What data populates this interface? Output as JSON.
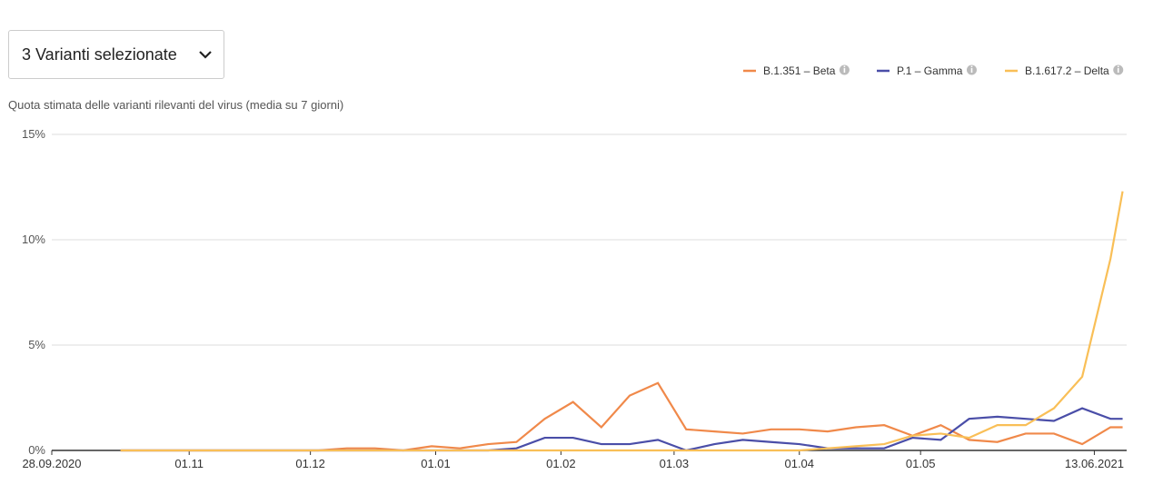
{
  "dropdown": {
    "label": "3 Varianti selezionate"
  },
  "chart_data": {
    "type": "line",
    "subtitle": "Quota stimata delle varianti rilevanti del virus (media su 7 giorni)",
    "x": [
      "2020-10-15",
      "2020-10-22",
      "2020-10-29",
      "2020-11-05",
      "2020-11-12",
      "2020-11-19",
      "2020-11-26",
      "2020-12-03",
      "2020-12-10",
      "2020-12-17",
      "2020-12-24",
      "2020-12-31",
      "2021-01-07",
      "2021-01-14",
      "2021-01-21",
      "2021-01-28",
      "2021-02-04",
      "2021-02-11",
      "2021-02-18",
      "2021-02-25",
      "2021-03-04",
      "2021-03-11",
      "2021-03-18",
      "2021-03-25",
      "2021-04-01",
      "2021-04-08",
      "2021-04-15",
      "2021-04-22",
      "2021-04-29",
      "2021-05-06",
      "2021-05-13",
      "2021-05-20",
      "2021-05-27",
      "2021-06-03",
      "2021-06-10",
      "2021-06-17",
      "2021-06-20"
    ],
    "series": [
      {
        "name": "B.1.351 – Beta",
        "color": "#f0894a",
        "values": [
          0,
          0,
          0,
          0,
          0,
          0,
          0,
          0,
          0.1,
          0.1,
          0,
          0.2,
          0.1,
          0.3,
          0.4,
          1.5,
          2.3,
          1.1,
          2.6,
          3.2,
          1.0,
          0.9,
          0.8,
          1.0,
          1.0,
          0.9,
          1.1,
          1.2,
          0.7,
          1.2,
          0.5,
          0.4,
          0.8,
          0.8,
          0.3,
          1.1,
          1.1
        ]
      },
      {
        "name": "P.1 – Gamma",
        "color": "#4a4ea8",
        "values": [
          0,
          0,
          0,
          0,
          0,
          0,
          0,
          0,
          0,
          0,
          0,
          0,
          0,
          0,
          0.1,
          0.6,
          0.6,
          0.3,
          0.3,
          0.5,
          0,
          0.3,
          0.5,
          0.4,
          0.3,
          0.1,
          0.1,
          0.1,
          0.6,
          0.5,
          1.5,
          1.6,
          1.5,
          1.4,
          2.0,
          1.5,
          1.5
        ]
      },
      {
        "name": "B.1.617.2 – Delta",
        "color": "#f9bf57",
        "values": [
          0,
          0,
          0,
          0,
          0,
          0,
          0,
          0,
          0,
          0,
          0,
          0,
          0,
          0,
          0,
          0,
          0,
          0,
          0,
          0,
          0,
          0,
          0,
          0,
          0,
          0.1,
          0.2,
          0.3,
          0.7,
          0.8,
          0.6,
          1.2,
          1.2,
          2.0,
          3.5,
          9.1,
          12.3
        ]
      }
    ],
    "xlim": [
      "2020-09-28",
      "2021-06-21"
    ],
    "xticks": [
      {
        "value": "2020-09-28",
        "label": "28.09.2020"
      },
      {
        "value": "2020-11-01",
        "label": "01.11"
      },
      {
        "value": "2020-12-01",
        "label": "01.12"
      },
      {
        "value": "2021-01-01",
        "label": "01.01"
      },
      {
        "value": "2021-02-01",
        "label": "01.02"
      },
      {
        "value": "2021-03-01",
        "label": "01.03"
      },
      {
        "value": "2021-04-01",
        "label": "01.04"
      },
      {
        "value": "2021-05-01",
        "label": "01.05"
      },
      {
        "value": "2021-06-13",
        "label": "13.06.2021"
      }
    ],
    "ylim": [
      0,
      15
    ],
    "yticks": [
      {
        "value": 0,
        "label": "0%"
      },
      {
        "value": 5,
        "label": "5%"
      },
      {
        "value": 10,
        "label": "10%"
      },
      {
        "value": 15,
        "label": "15%"
      }
    ],
    "grid": true
  }
}
